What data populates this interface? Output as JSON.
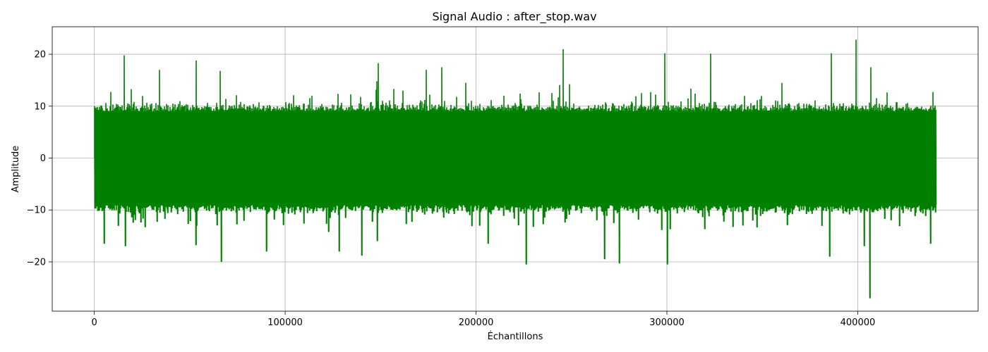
{
  "chart_data": {
    "type": "line",
    "title": "Signal Audio : after_stop.wav",
    "xlabel": "Échantillons",
    "ylabel": "Amplitude",
    "xlim": [
      -22050,
      463050
    ],
    "ylim": [
      -29.5,
      25.3
    ],
    "xticks": [
      0,
      100000,
      200000,
      300000,
      400000
    ],
    "xtick_labels": [
      "0",
      "100000",
      "200000",
      "300000",
      "400000"
    ],
    "yticks": [
      -20,
      -10,
      0,
      10,
      20
    ],
    "ytick_labels": [
      "−20",
      "−10",
      "0",
      "10",
      "20"
    ],
    "grid": true,
    "line_color": "#008000",
    "series": [
      {
        "x_start": 0,
        "x_end": 441000,
        "sample_count": 441000,
        "typical_range": [
          -9,
          9
        ],
        "peaks": [
          {
            "x": 15800,
            "y": 19.8
          },
          {
            "x": 34000,
            "y": 17.0
          },
          {
            "x": 53500,
            "y": 18.8
          },
          {
            "x": 66000,
            "y": 16.8
          },
          {
            "x": 148000,
            "y": 14.8
          },
          {
            "x": 148800,
            "y": 18.3
          },
          {
            "x": 174000,
            "y": 17.0
          },
          {
            "x": 182000,
            "y": 17.5
          },
          {
            "x": 245500,
            "y": 21.0
          },
          {
            "x": 299000,
            "y": 20.2
          },
          {
            "x": 323000,
            "y": 20.1
          },
          {
            "x": 386000,
            "y": 20.2
          },
          {
            "x": 399000,
            "y": 22.8
          },
          {
            "x": 407000,
            "y": 17.5
          }
        ],
        "troughs": [
          {
            "x": 5000,
            "y": -16.5
          },
          {
            "x": 16000,
            "y": -17.0
          },
          {
            "x": 53000,
            "y": -16.8
          },
          {
            "x": 66500,
            "y": -20.0
          },
          {
            "x": 90000,
            "y": -18.0
          },
          {
            "x": 128000,
            "y": -18.0
          },
          {
            "x": 140000,
            "y": -18.8
          },
          {
            "x": 148000,
            "y": -16.0
          },
          {
            "x": 206000,
            "y": -16.5
          },
          {
            "x": 226000,
            "y": -20.5
          },
          {
            "x": 267000,
            "y": -19.5
          },
          {
            "x": 275000,
            "y": -20.3
          },
          {
            "x": 300000,
            "y": -20.5
          },
          {
            "x": 385000,
            "y": -19.0
          },
          {
            "x": 403000,
            "y": -17.0
          },
          {
            "x": 406000,
            "y": -27.0
          },
          {
            "x": 438000,
            "y": -16.5
          }
        ]
      }
    ]
  }
}
